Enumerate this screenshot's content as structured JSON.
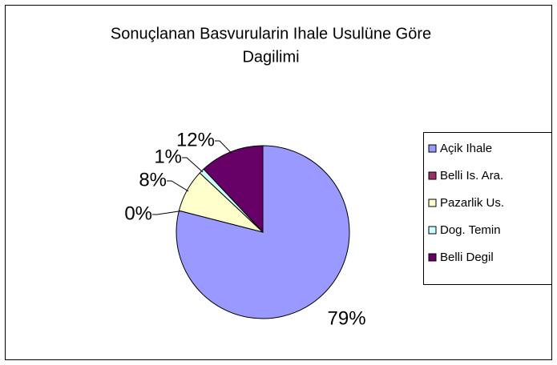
{
  "chart_data": {
    "type": "pie",
    "title": [
      "Sonuçlanan Basvurularin Ihale Usulüne Göre",
      "Dagilimi"
    ],
    "categories": [
      "Açik Ihale",
      "Belli Is. Ara.",
      "Pazarlik Us.",
      "Dog. Temin",
      "Belli Degil"
    ],
    "values": [
      79,
      0,
      8,
      1,
      12
    ],
    "value_labels": [
      "79%",
      "0%",
      "8%",
      "1%",
      "12%"
    ],
    "colors": [
      "#9999ff",
      "#993366",
      "#ffffcc",
      "#ccffff",
      "#660066"
    ],
    "legend": "right"
  }
}
